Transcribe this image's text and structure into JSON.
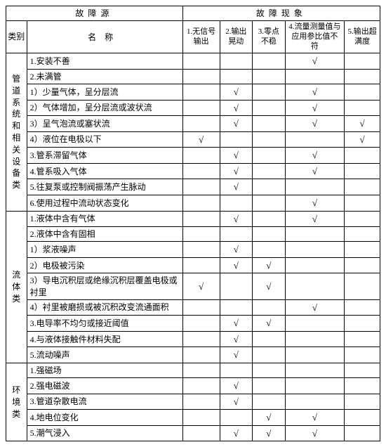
{
  "colors": {
    "background": "#ffffff",
    "border": "#000000",
    "text": "#000000"
  },
  "header": {
    "source_group": "故障源",
    "symptom_group": "故障现象",
    "category_label": "类别",
    "name_label": "名称",
    "cols": {
      "c1": "1.无信号输出",
      "c2": "2.输出晃动",
      "c3": "3.零点不稳",
      "c4": "4.流量测量值与应用参比值不符",
      "c5": "5.输出超满度"
    }
  },
  "check_symbol": "√",
  "categories": [
    {
      "label": "管道系统和相关设备类",
      "rows": [
        {
          "name": "1.安装不善",
          "c1": false,
          "c2": false,
          "c3": false,
          "c4": true,
          "c5": false
        },
        {
          "name": "2.未满管",
          "c1": false,
          "c2": false,
          "c3": false,
          "c4": false,
          "c5": false
        },
        {
          "name": "1）少量气体，呈分层流",
          "c1": false,
          "c2": true,
          "c3": false,
          "c4": true,
          "c5": false
        },
        {
          "name": "2）气体增加，呈分层流或波状流",
          "c1": false,
          "c2": true,
          "c3": false,
          "c4": true,
          "c5": false
        },
        {
          "name": "3）呈气泡流或塞状流",
          "c1": false,
          "c2": true,
          "c3": false,
          "c4": true,
          "c5": true
        },
        {
          "name": "4）液位在电极以下",
          "c1": true,
          "c2": false,
          "c3": false,
          "c4": false,
          "c5": true
        },
        {
          "name": "3.管系滞留气体",
          "c1": false,
          "c2": true,
          "c3": false,
          "c4": true,
          "c5": false
        },
        {
          "name": "4.管系吸入气体",
          "c1": false,
          "c2": true,
          "c3": false,
          "c4": true,
          "c5": false
        },
        {
          "name": "5.往复泵或控制阀振荡产生脉动",
          "c1": false,
          "c2": true,
          "c3": false,
          "c4": false,
          "c5": false
        },
        {
          "name": "6.使用过程中流动状态变化",
          "c1": false,
          "c2": false,
          "c3": false,
          "c4": true,
          "c5": false
        }
      ]
    },
    {
      "label": "流体类",
      "rows": [
        {
          "name": "1.液体中含有气体",
          "c1": false,
          "c2": true,
          "c3": false,
          "c4": true,
          "c5": false
        },
        {
          "name": "2.液体中含有固相",
          "c1": false,
          "c2": false,
          "c3": false,
          "c4": false,
          "c5": false
        },
        {
          "name": "1）浆液噪声",
          "c1": false,
          "c2": true,
          "c3": false,
          "c4": false,
          "c5": false
        },
        {
          "name": "2）电极被污染",
          "c1": false,
          "c2": true,
          "c3": true,
          "c4": false,
          "c5": false
        },
        {
          "name": "3）导电沉积层或绝缘沉积层覆盖电极或衬里",
          "c1": true,
          "c2": false,
          "c3": true,
          "c4": false,
          "c5": false
        },
        {
          "name": "4）衬里被磨损或被沉积改变流通面积",
          "c1": false,
          "c2": false,
          "c3": false,
          "c4": true,
          "c5": false
        },
        {
          "name": "3.电导率不均匀或接近阈值",
          "c1": false,
          "c2": true,
          "c3": true,
          "c4": false,
          "c5": false
        },
        {
          "name": "4.与液体接触件材料失配",
          "c1": false,
          "c2": true,
          "c3": false,
          "c4": false,
          "c5": false
        },
        {
          "name": "5.流动噪声",
          "c1": false,
          "c2": true,
          "c3": false,
          "c4": false,
          "c5": false
        }
      ]
    },
    {
      "label": "环境类",
      "rows": [
        {
          "name": "1.强磁场",
          "c1": false,
          "c2": false,
          "c3": false,
          "c4": false,
          "c5": false
        },
        {
          "name": "2.强电磁波",
          "c1": false,
          "c2": true,
          "c3": false,
          "c4": false,
          "c5": false
        },
        {
          "name": "3.管道杂散电流",
          "c1": false,
          "c2": true,
          "c3": false,
          "c4": false,
          "c5": false
        },
        {
          "name": "4.地电位变化",
          "c1": false,
          "c2": false,
          "c3": true,
          "c4": true,
          "c5": false
        },
        {
          "name": "5.潮气浸入",
          "c1": false,
          "c2": true,
          "c3": true,
          "c4": true,
          "c5": false
        }
      ]
    }
  ]
}
